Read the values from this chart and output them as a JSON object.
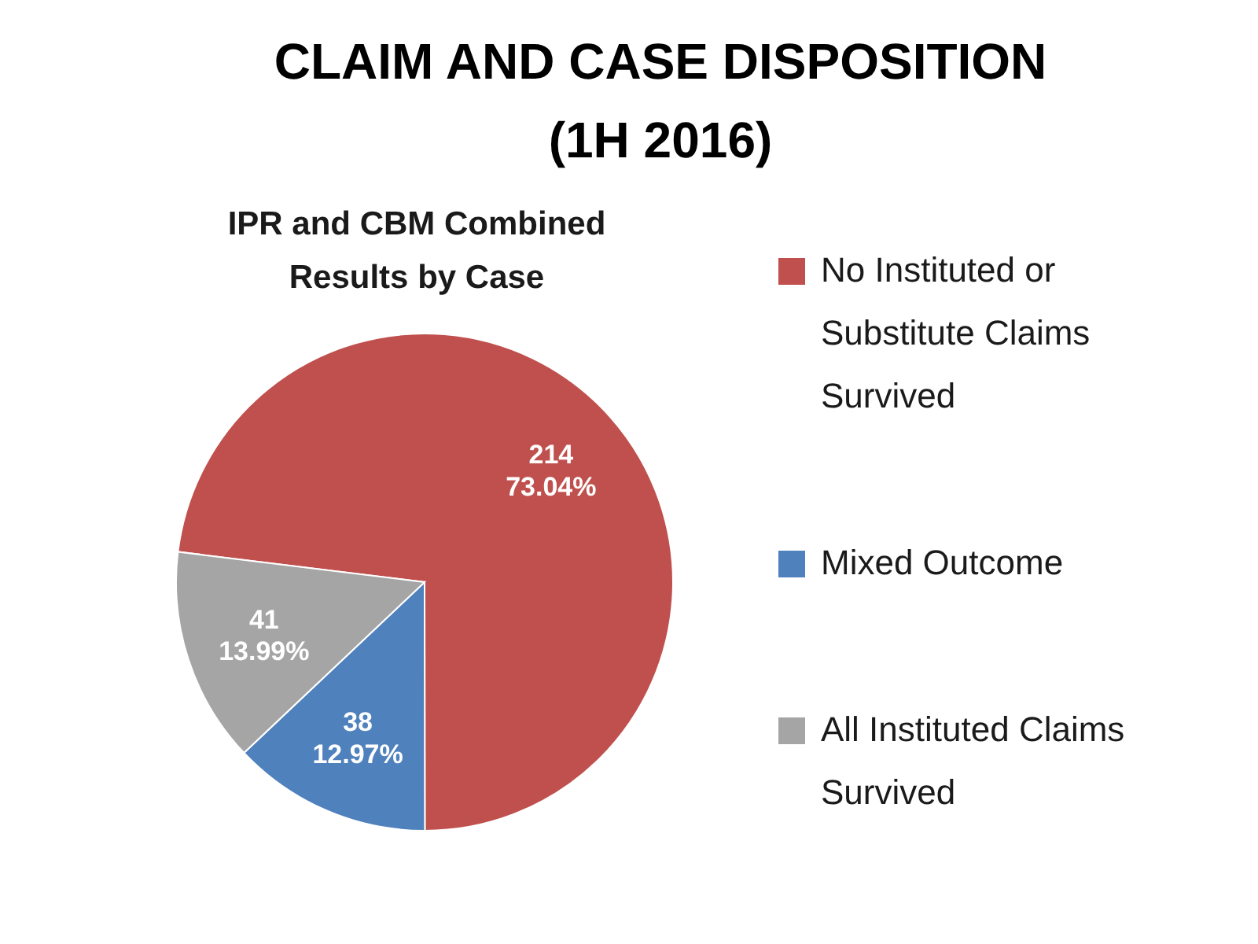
{
  "chart_data": {
    "type": "pie",
    "title": "CLAIM AND CASE DISPOSITION (1H 2016)",
    "subtitle": "IPR and CBM Combined Results by Case",
    "categories": [
      "No Instituted or Substitute Claims Survived",
      "Mixed Outcome",
      "All Instituted Claims Survived"
    ],
    "values": [
      214,
      38,
      41
    ],
    "colors": [
      "#c0504d",
      "#4f81bd",
      "#a5a5a5"
    ],
    "value_labels": [
      "214\n73.04%",
      "38\n12.97%",
      "41\n13.99%"
    ],
    "legend": "right"
  }
}
